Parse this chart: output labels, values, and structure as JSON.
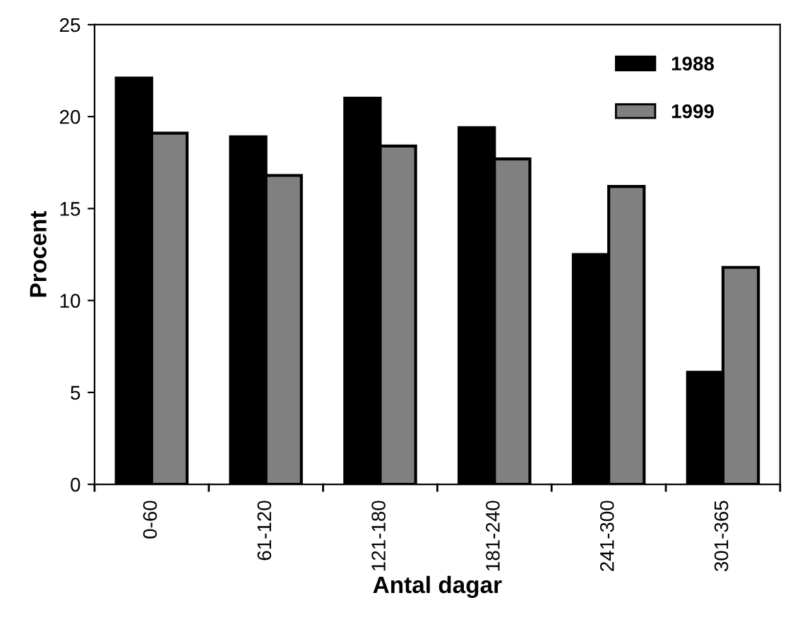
{
  "chart_data": {
    "type": "bar",
    "xlabel": "Antal dagar",
    "ylabel": "Procent",
    "categories": [
      "0-60",
      "61-120",
      "121-180",
      "181-240",
      "241-300",
      "301-365"
    ],
    "series": [
      {
        "name": "1988",
        "color": "#000000",
        "values": [
          22.1,
          18.9,
          21.0,
          19.4,
          12.5,
          6.1
        ]
      },
      {
        "name": "1999",
        "color": "#808080",
        "values": [
          19.1,
          16.8,
          18.4,
          17.7,
          16.2,
          11.8
        ]
      }
    ],
    "ylim": [
      0,
      25
    ],
    "yticks": [
      0,
      5,
      10,
      15,
      20,
      25
    ],
    "grid": false,
    "legend": "top right"
  }
}
